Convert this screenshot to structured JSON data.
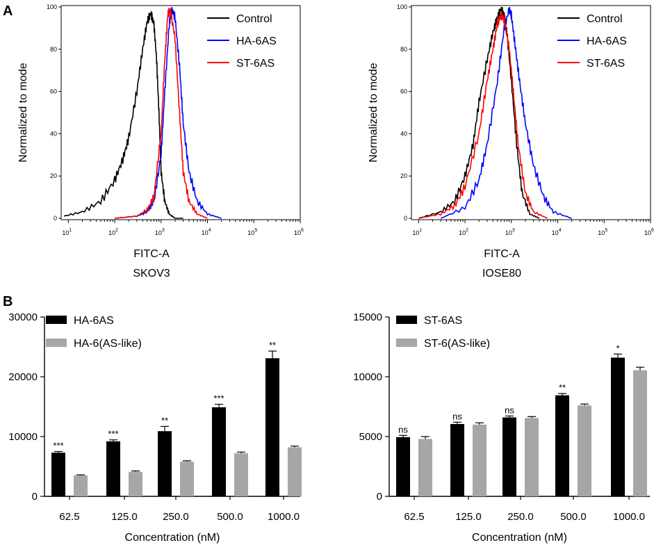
{
  "panels": {
    "A": "A",
    "B": "B"
  },
  "chart_data": [
    {
      "type": "line",
      "title": "SKOV3",
      "xlabel": "FITC-A",
      "ylabel": "Normalized to mode",
      "xscale": "log",
      "xlim": [
        7,
        1000000
      ],
      "ylim": [
        0,
        100
      ],
      "x_ticks": [
        "10",
        "10",
        "10",
        "10",
        "10",
        "10"
      ],
      "x_tick_exponents": [
        "1",
        "2",
        "3",
        "4",
        "5",
        "6"
      ],
      "y_ticks": [
        "0",
        "20",
        "40",
        "60",
        "80",
        "100"
      ],
      "legend": "top-right",
      "series": [
        {
          "name": "Control",
          "color": "#000000",
          "x": [
            8,
            20,
            50,
            100,
            150,
            200,
            300,
            400,
            500,
            600,
            700,
            800,
            900,
            1000,
            1200,
            1500,
            2000,
            3000
          ],
          "y": [
            1,
            3,
            8,
            18,
            28,
            38,
            60,
            80,
            93,
            97,
            92,
            75,
            50,
            22,
            8,
            2,
            0,
            0
          ]
        },
        {
          "name": "HA-6AS",
          "color": "#0000ff",
          "x": [
            100,
            300,
            500,
            700,
            1000,
            1200,
            1500,
            1700,
            2000,
            2500,
            3000,
            4000,
            6000,
            10000,
            20000
          ],
          "y": [
            0,
            1,
            3,
            8,
            30,
            60,
            92,
            99,
            95,
            72,
            45,
            22,
            8,
            2,
            0
          ]
        },
        {
          "name": "ST-6AS",
          "color": "#ff0000",
          "x": [
            100,
            300,
            500,
            700,
            1000,
            1200,
            1400,
            1600,
            2000,
            2500,
            3000,
            4000,
            6000,
            10000
          ],
          "y": [
            0,
            1,
            4,
            10,
            40,
            75,
            97,
            98,
            85,
            50,
            22,
            8,
            2,
            0
          ]
        }
      ]
    },
    {
      "type": "line",
      "title": "IOSE80",
      "xlabel": "FITC-A",
      "ylabel": "Normalized to mode",
      "xscale": "log",
      "xlim": [
        7,
        1000000
      ],
      "ylim": [
        0,
        100
      ],
      "x_ticks": [
        "10",
        "10",
        "10",
        "10",
        "10",
        "10"
      ],
      "x_tick_exponents": [
        "1",
        "2",
        "3",
        "4",
        "5",
        "6"
      ],
      "y_ticks": [
        "0",
        "20",
        "40",
        "60",
        "80",
        "100"
      ],
      "legend": "top-right",
      "series": [
        {
          "name": "Control",
          "color": "#000000",
          "x": [
            10,
            30,
            60,
            100,
            150,
            200,
            300,
            400,
            500,
            600,
            700,
            800,
            1000,
            1300,
            1700,
            2500,
            4000
          ],
          "y": [
            0,
            3,
            8,
            20,
            35,
            55,
            75,
            88,
            95,
            99,
            96,
            88,
            65,
            35,
            12,
            2,
            0
          ]
        },
        {
          "name": "HA-6AS",
          "color": "#0000ff",
          "x": [
            30,
            100,
            200,
            300,
            500,
            700,
            900,
            1000,
            1200,
            1500,
            2000,
            3000,
            5000,
            8000,
            20000
          ],
          "y": [
            0,
            5,
            18,
            35,
            65,
            90,
            99,
            96,
            82,
            65,
            45,
            25,
            10,
            3,
            0
          ]
        },
        {
          "name": "ST-6AS",
          "color": "#ff0000",
          "x": [
            10,
            30,
            60,
            100,
            200,
            300,
            400,
            500,
            600,
            700,
            900,
            1100,
            1400,
            2000,
            3000,
            6000
          ],
          "y": [
            0,
            2,
            6,
            15,
            40,
            65,
            80,
            92,
            96,
            94,
            80,
            60,
            35,
            12,
            3,
            0
          ]
        }
      ]
    },
    {
      "type": "bar",
      "categories": [
        "62.5",
        "125.0",
        "250.0",
        "500.0",
        "1000.0"
      ],
      "xlabel": "Concentration (nM)",
      "ylabel": "",
      "ylim": [
        0,
        30000
      ],
      "y_ticks": [
        "0",
        "10000",
        "20000",
        "30000"
      ],
      "legend": "top-left",
      "series": [
        {
          "name": "HA-6AS",
          "color": "#000000",
          "values": [
            7300,
            9200,
            10900,
            14900,
            23100
          ],
          "errors": [
            200,
            250,
            800,
            500,
            1200
          ]
        },
        {
          "name": "HA-6(AS-like)",
          "color": "#a6a6a6",
          "values": [
            3500,
            4100,
            5800,
            7200,
            8200
          ],
          "errors": [
            100,
            150,
            150,
            200,
            200
          ]
        }
      ],
      "significance": [
        "***",
        "***",
        "**",
        "***",
        "**"
      ]
    },
    {
      "type": "bar",
      "categories": [
        "62.5",
        "125.0",
        "250.0",
        "500.0",
        "1000.0"
      ],
      "xlabel": "Concentration (nM)",
      "ylabel": "",
      "ylim": [
        0,
        15000
      ],
      "y_ticks": [
        "0",
        "5000",
        "10000",
        "15000"
      ],
      "legend": "top-left",
      "series": [
        {
          "name": "ST-6AS",
          "color": "#000000",
          "values": [
            4950,
            6050,
            6600,
            8450,
            11600
          ],
          "errors": [
            150,
            150,
            120,
            150,
            300
          ]
        },
        {
          "name": "ST-6(AS-like)",
          "color": "#a6a6a6",
          "values": [
            4800,
            6000,
            6550,
            7600,
            10550
          ],
          "errors": [
            200,
            150,
            120,
            120,
            250
          ]
        }
      ],
      "significance": [
        "ns",
        "ns",
        "ns",
        "**",
        "*"
      ]
    }
  ]
}
